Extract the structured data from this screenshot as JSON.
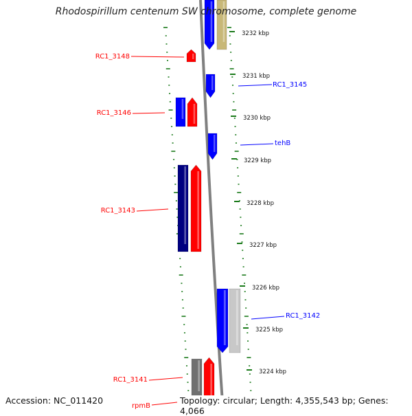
{
  "title": "Rhodospirillum centenum SW chromosome, complete genome",
  "footer": {
    "accession": "Accession: NC_011420",
    "topology": "Topology: circular; Length: 4,355,543 bp; Genes: 4,066"
  },
  "kbp_labels": [
    "3232 kbp",
    "3231 kbp",
    "3230 kbp",
    "3229 kbp",
    "3228 kbp",
    "3227 kbp",
    "3226 kbp",
    "3225 kbp",
    "3224 kbp"
  ],
  "gene_labels": [
    "RC1_3148",
    "RC1_3145",
    "RC1_3146",
    "tehB",
    "RC1_3143",
    "RC1_3142",
    "RC1_3141",
    "rpmB"
  ],
  "colors": {
    "forward_gene": "#ff0000",
    "reverse_gene": "#0000ff",
    "dark_blue_gene": "#000080",
    "olive_gene": "#c8b878",
    "gray_gene": "#707070",
    "light_gray_gene": "#c8c8c8",
    "tick": "#1a7a1a",
    "axis": "#808080"
  }
}
